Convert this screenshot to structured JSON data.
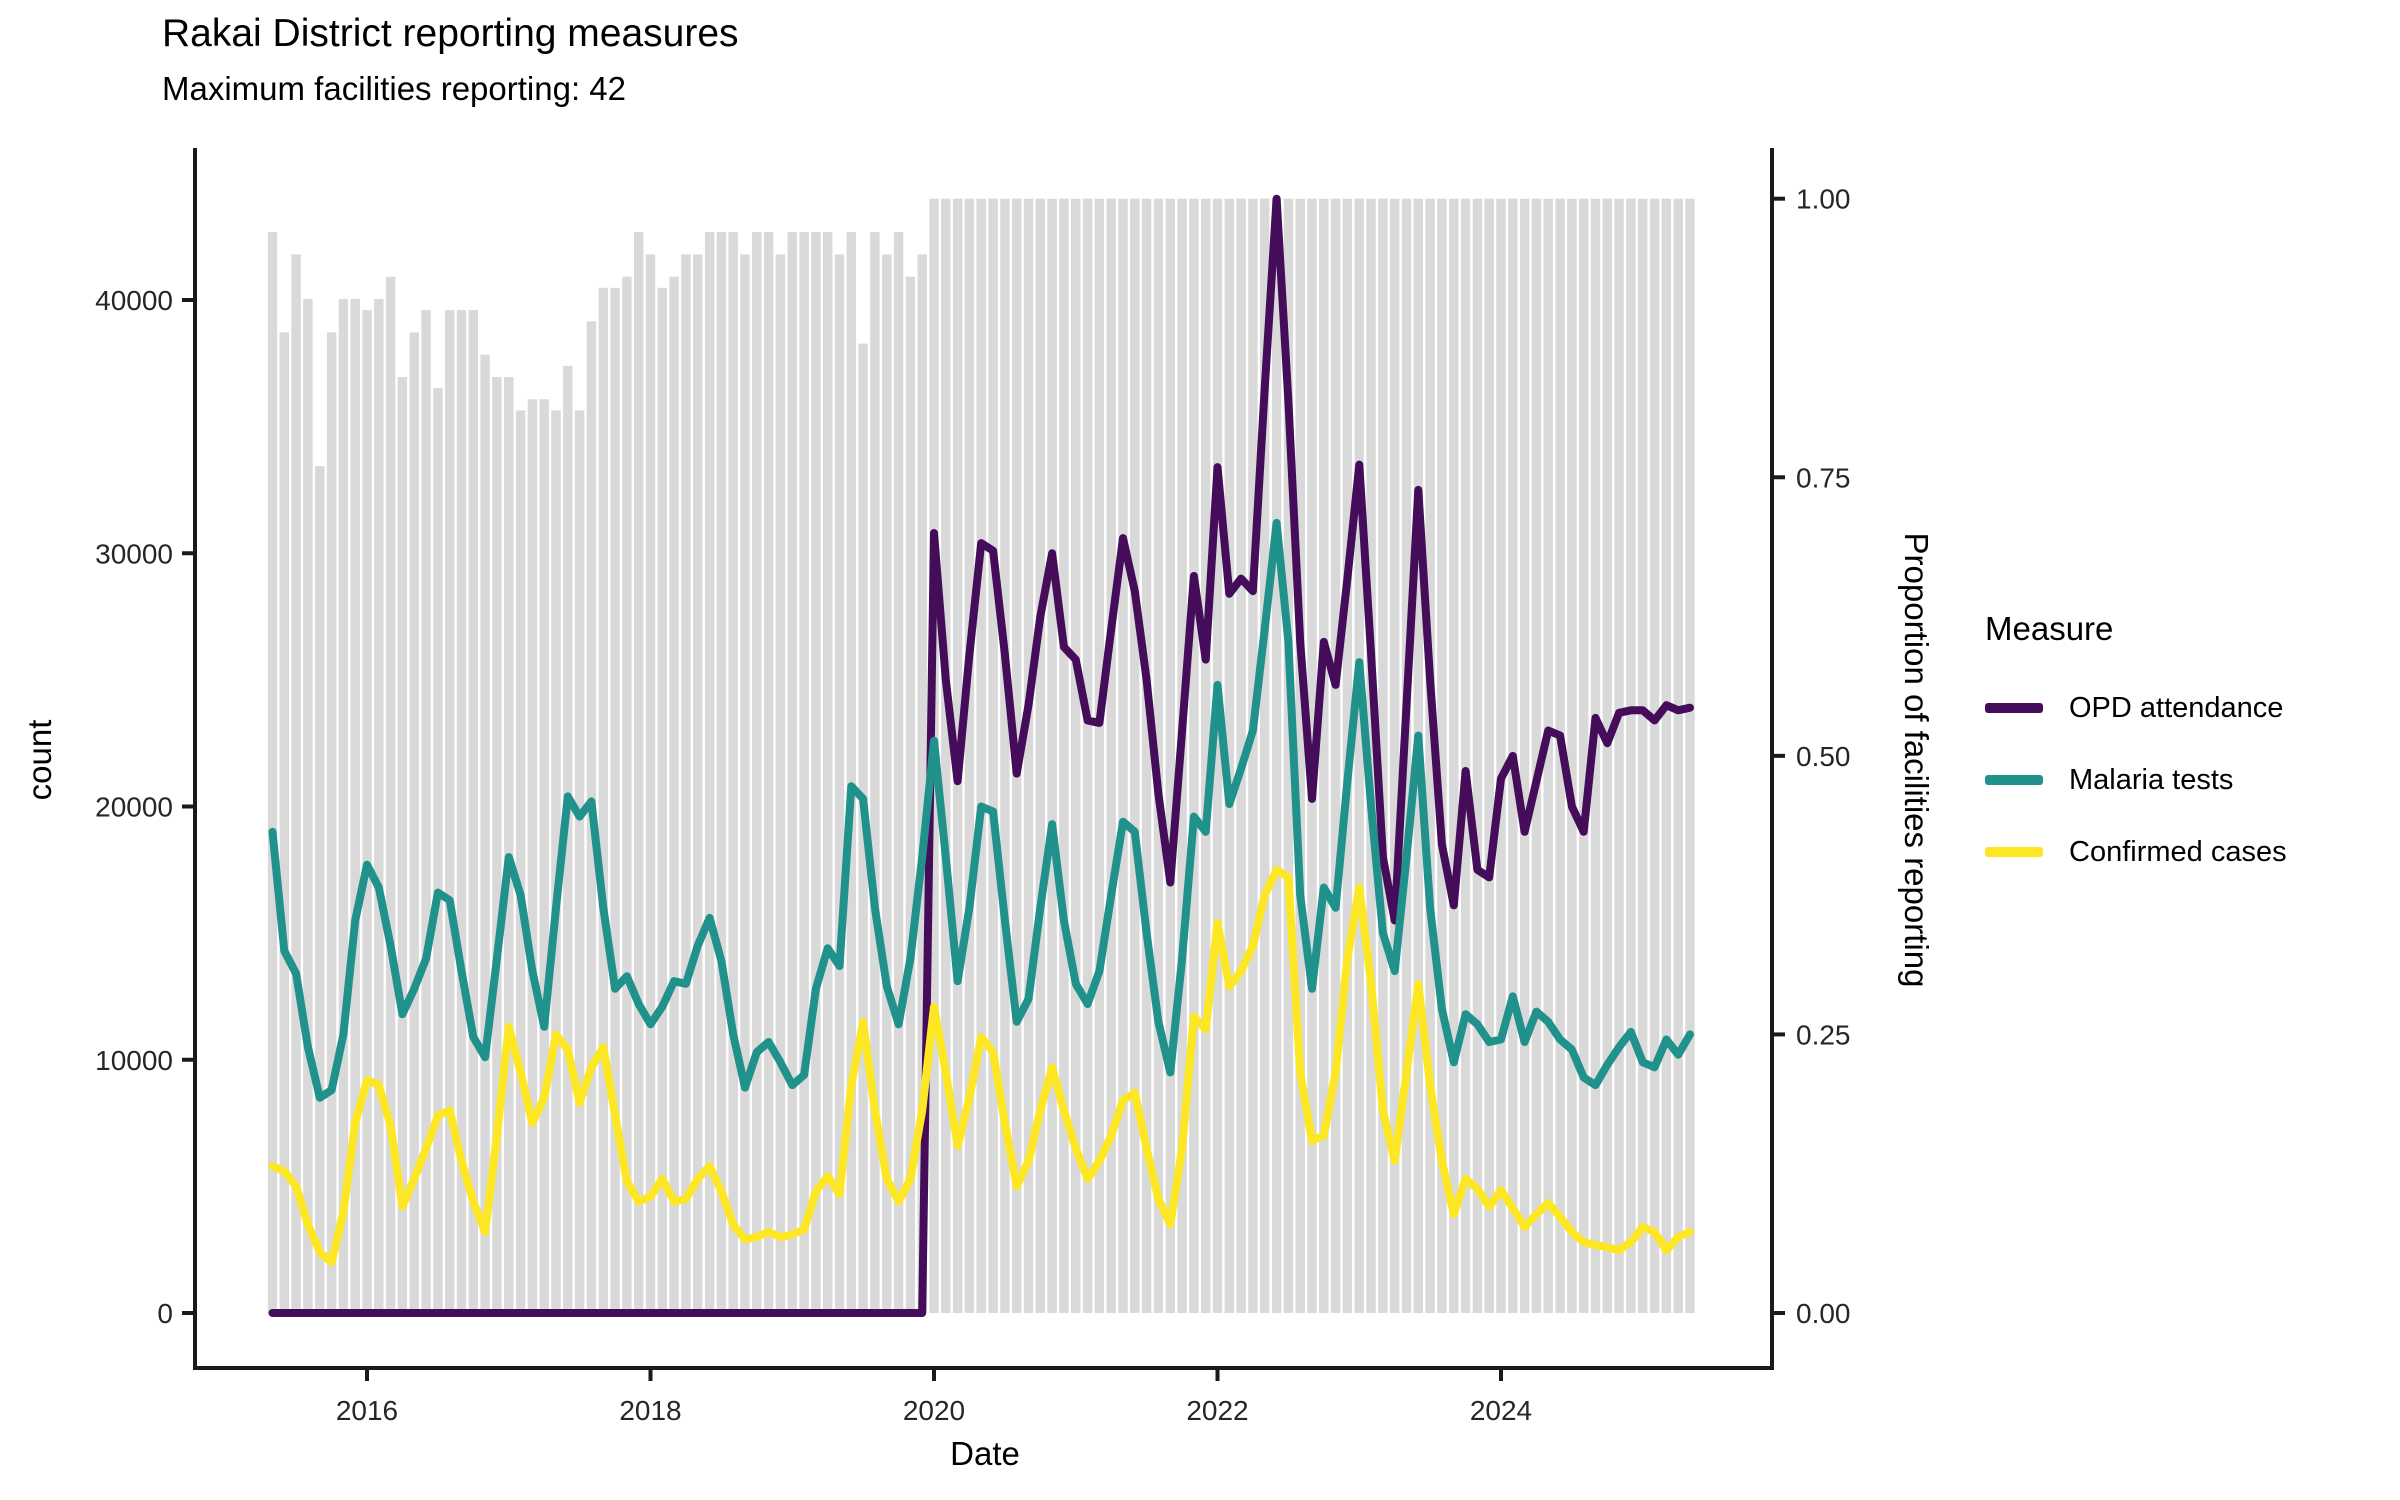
{
  "title": "Rakai District reporting measures",
  "subtitle": "Maximum facilities reporting: 42",
  "axes": {
    "left_label": "count",
    "bottom_label": "Date",
    "right_label": "Proportion of facilities reporting"
  },
  "legend": {
    "title": "Measure",
    "items": [
      {
        "label": "OPD attendance",
        "color": "#450d59"
      },
      {
        "label": "Malaria tests",
        "color": "#21918c"
      },
      {
        "label": "Confirmed cases",
        "color": "#fde725"
      }
    ]
  },
  "chart_data": {
    "type": "line+bar",
    "title": "Rakai District reporting measures",
    "subtitle": "Maximum facilities reporting: 42",
    "max_facilities": 42,
    "x": {
      "label": "Date",
      "start": "2015-05",
      "end": "2025-05",
      "frequency": "monthly",
      "tick_years": [
        2016,
        2018,
        2020,
        2022,
        2024
      ],
      "tick_labels": [
        "2016",
        "2018",
        "2020",
        "2022",
        "2024"
      ]
    },
    "y_left": {
      "label": "count",
      "ticks": [
        0,
        10000,
        20000,
        30000,
        40000
      ],
      "range_displayed": [
        0,
        46000
      ]
    },
    "y_right": {
      "label": "Proportion of facilities reporting",
      "ticks": [
        0,
        0.25,
        0.5,
        0.75,
        1.0
      ],
      "tick_labels": [
        "0.00",
        "0.25",
        "0.50",
        "0.75",
        "1.00"
      ],
      "count_per_unit": 44000
    },
    "bars": {
      "name": "Proportion of facilities reporting",
      "color": "#d9d9d9",
      "values": [
        0.97,
        0.88,
        0.95,
        0.91,
        0.76,
        0.88,
        0.91,
        0.91,
        0.9,
        0.91,
        0.93,
        0.84,
        0.88,
        0.9,
        0.83,
        0.9,
        0.9,
        0.9,
        0.86,
        0.84,
        0.84,
        0.81,
        0.82,
        0.82,
        0.81,
        0.85,
        0.81,
        0.89,
        0.92,
        0.92,
        0.93,
        0.97,
        0.95,
        0.92,
        0.93,
        0.95,
        0.95,
        0.97,
        0.97,
        0.97,
        0.95,
        0.97,
        0.97,
        0.95,
        0.97,
        0.97,
        0.97,
        0.97,
        0.95,
        0.97,
        0.87,
        0.97,
        0.95,
        0.97,
        0.93,
        0.95,
        1,
        1,
        1,
        1,
        1,
        1,
        1,
        1,
        1,
        1,
        1,
        1,
        1,
        1,
        1,
        1,
        1,
        1,
        1,
        1,
        1,
        1,
        1,
        1,
        1,
        1,
        1,
        1,
        1,
        1,
        1,
        1,
        1,
        1,
        1,
        1,
        1,
        1,
        1,
        1,
        1,
        1,
        1,
        1,
        1,
        1,
        1,
        1,
        1,
        1,
        1,
        1,
        1,
        1,
        1,
        1,
        1,
        1,
        1,
        1,
        1,
        1,
        1,
        1,
        1
      ]
    },
    "series": [
      {
        "name": "OPD attendance",
        "color": "#450d59",
        "values": [
          0,
          0,
          0,
          0,
          0,
          0,
          0,
          0,
          0,
          0,
          0,
          0,
          0,
          0,
          0,
          0,
          0,
          0,
          0,
          0,
          0,
          0,
          0,
          0,
          0,
          0,
          0,
          0,
          0,
          0,
          0,
          0,
          0,
          0,
          0,
          0,
          0,
          0,
          0,
          0,
          0,
          0,
          0,
          0,
          0,
          0,
          0,
          0,
          0,
          0,
          0,
          0,
          0,
          0,
          0,
          0,
          30800,
          25000,
          21000,
          26000,
          30400,
          30100,
          26000,
          21300,
          24000,
          27500,
          30000,
          26300,
          25800,
          23400,
          23300,
          27000,
          30600,
          28500,
          25000,
          20500,
          17000,
          23000,
          29100,
          25800,
          33400,
          28400,
          29000,
          28500,
          36500,
          44000,
          36000,
          26500,
          20300,
          26500,
          24800,
          29000,
          33500,
          26000,
          18000,
          15500,
          24000,
          32500,
          25000,
          18500,
          16100,
          21400,
          17500,
          17200,
          21100,
          22000,
          19000,
          21000,
          23000,
          22800,
          20000,
          19000,
          23500,
          22500,
          23700,
          23800,
          23800,
          23400,
          24000,
          23800,
          23900
        ]
      },
      {
        "name": "Malaria tests",
        "color": "#21918c",
        "values": [
          19000,
          14300,
          13400,
          10500,
          8500,
          8800,
          11000,
          15500,
          17700,
          16800,
          14500,
          11800,
          12800,
          14000,
          16600,
          16300,
          13500,
          10900,
          10100,
          14000,
          18000,
          16500,
          13500,
          11300,
          16000,
          20400,
          19600,
          20200,
          16000,
          12800,
          13300,
          12200,
          11400,
          12100,
          13100,
          13000,
          14500,
          15600,
          13900,
          11000,
          8900,
          10300,
          10700,
          9900,
          9000,
          9400,
          12800,
          14400,
          13700,
          20800,
          20300,
          16000,
          12900,
          11400,
          14000,
          18000,
          22600,
          18000,
          13100,
          16000,
          20000,
          19800,
          15500,
          11500,
          12400,
          16000,
          19300,
          15500,
          13000,
          12200,
          13500,
          16500,
          19400,
          19000,
          15000,
          11500,
          9500,
          14000,
          19600,
          19000,
          24800,
          20100,
          21500,
          23000,
          27000,
          31200,
          26500,
          16500,
          12800,
          16800,
          16000,
          21000,
          25700,
          20000,
          15000,
          13500,
          18000,
          22800,
          16000,
          12000,
          9900,
          11800,
          11400,
          10700,
          10800,
          12500,
          10700,
          11900,
          11500,
          10800,
          10400,
          9300,
          9000,
          9800,
          10500,
          11100,
          9900,
          9700,
          10800,
          10200,
          11000
        ]
      },
      {
        "name": "Confirmed cases",
        "color": "#fde725",
        "values": [
          5800,
          5600,
          5000,
          3500,
          2400,
          2000,
          4000,
          7500,
          9200,
          9000,
          7400,
          4200,
          5300,
          6500,
          7800,
          8000,
          6000,
          4400,
          3200,
          7000,
          11300,
          9500,
          7500,
          8500,
          11000,
          10400,
          8300,
          9700,
          10500,
          7800,
          5200,
          4400,
          4600,
          5300,
          4400,
          4500,
          5300,
          5800,
          4800,
          3500,
          2900,
          3000,
          3200,
          3000,
          3100,
          3300,
          4800,
          5400,
          4700,
          9000,
          11500,
          8000,
          5300,
          4400,
          5300,
          8000,
          12100,
          9500,
          6600,
          8500,
          10900,
          10300,
          7500,
          5000,
          6000,
          8000,
          9700,
          8000,
          6500,
          5300,
          6000,
          7000,
          8400,
          8700,
          6500,
          4500,
          3500,
          6500,
          11700,
          11200,
          15400,
          12900,
          13500,
          14500,
          16500,
          17500,
          17200,
          9500,
          6800,
          7000,
          9500,
          14000,
          16800,
          13000,
          8000,
          6000,
          9500,
          13000,
          9000,
          6000,
          3900,
          5300,
          4900,
          4200,
          4850,
          4140,
          3400,
          3900,
          4340,
          3800,
          3200,
          2800,
          2680,
          2600,
          2480,
          2800,
          3390,
          3200,
          2480,
          3000,
          3200
        ]
      }
    ],
    "layout": {
      "bar_axis": "right",
      "legend_position": "right",
      "grid": false,
      "background": "#ffffff"
    }
  }
}
